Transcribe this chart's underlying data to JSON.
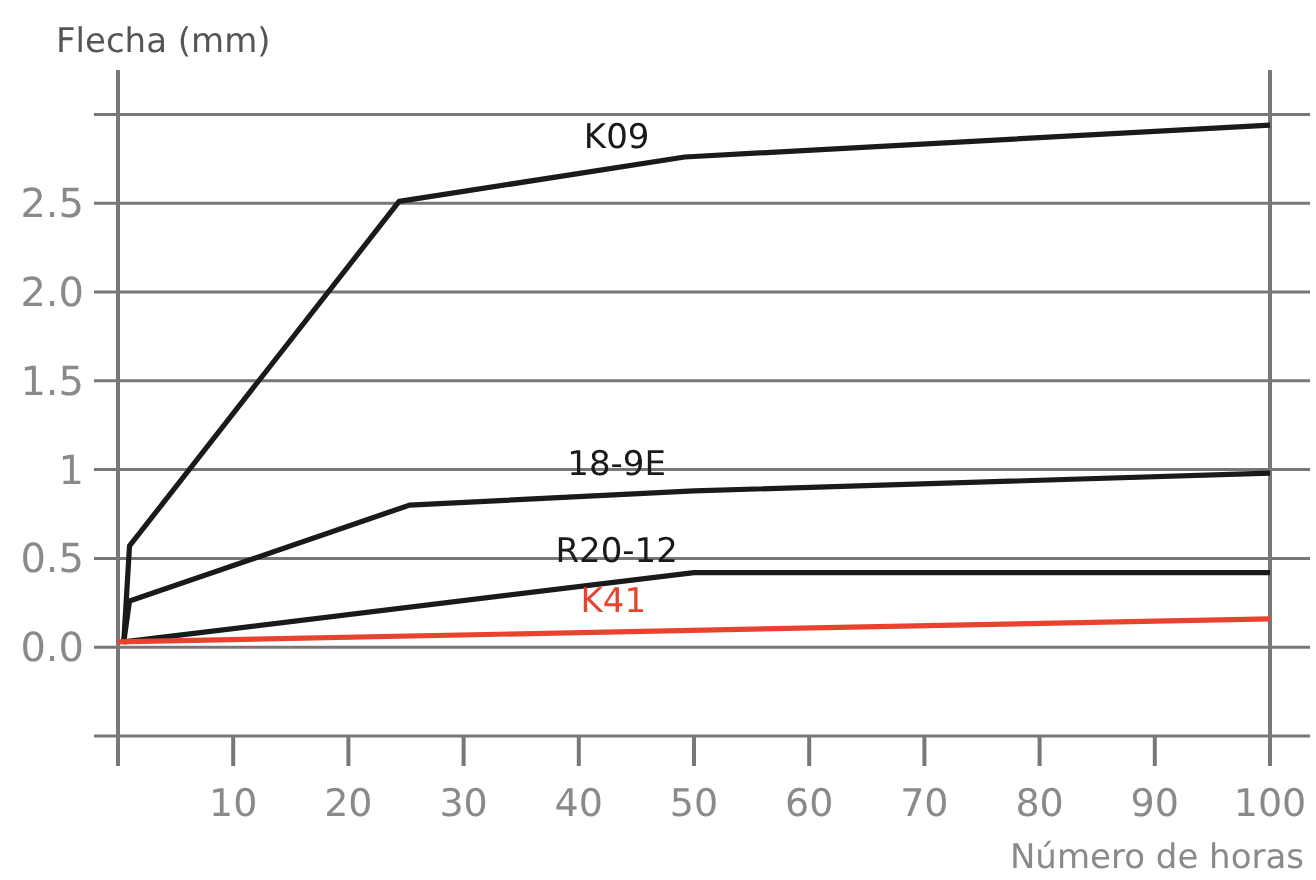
{
  "chart_data": {
    "type": "line",
    "xlabel": "Número de horas",
    "ylabel": "Flecha (mm)",
    "xlim": [
      0,
      100
    ],
    "xticks": [
      {
        "value": 0,
        "label": null
      },
      10,
      20,
      30,
      40,
      50,
      60,
      70,
      80,
      90,
      100
    ],
    "ylim": [
      -0.5,
      3.25
    ],
    "yticks": [
      {
        "value": 0,
        "label": "0.0"
      },
      0.5,
      1,
      1.5,
      {
        "value": 2,
        "label": "2.0"
      },
      2.5,
      {
        "value": 3,
        "label": null
      }
    ],
    "grid": "y",
    "marker": "none",
    "line_style": "solid",
    "series": [
      {
        "name": "K09",
        "color": "#1a1a1a",
        "x": [
          0.5,
          1,
          24.4,
          49.2,
          100
        ],
        "values": [
          0.03,
          0.57,
          2.51,
          2.76,
          2.94
        ]
      },
      {
        "name": "18-9E",
        "color": "#1a1a1a",
        "x": [
          0.5,
          1,
          25.3,
          50,
          100
        ],
        "values": [
          0.03,
          0.26,
          0.8,
          0.88,
          0.98
        ]
      },
      {
        "name": "R20-12",
        "color": "#1a1a1a",
        "x": [
          0.5,
          50,
          100
        ],
        "values": [
          0.03,
          0.42,
          0.42
        ]
      },
      {
        "name": "K41",
        "color": "#e8432e",
        "x": [
          0,
          100
        ],
        "values": [
          0.03,
          0.16
        ]
      }
    ]
  }
}
